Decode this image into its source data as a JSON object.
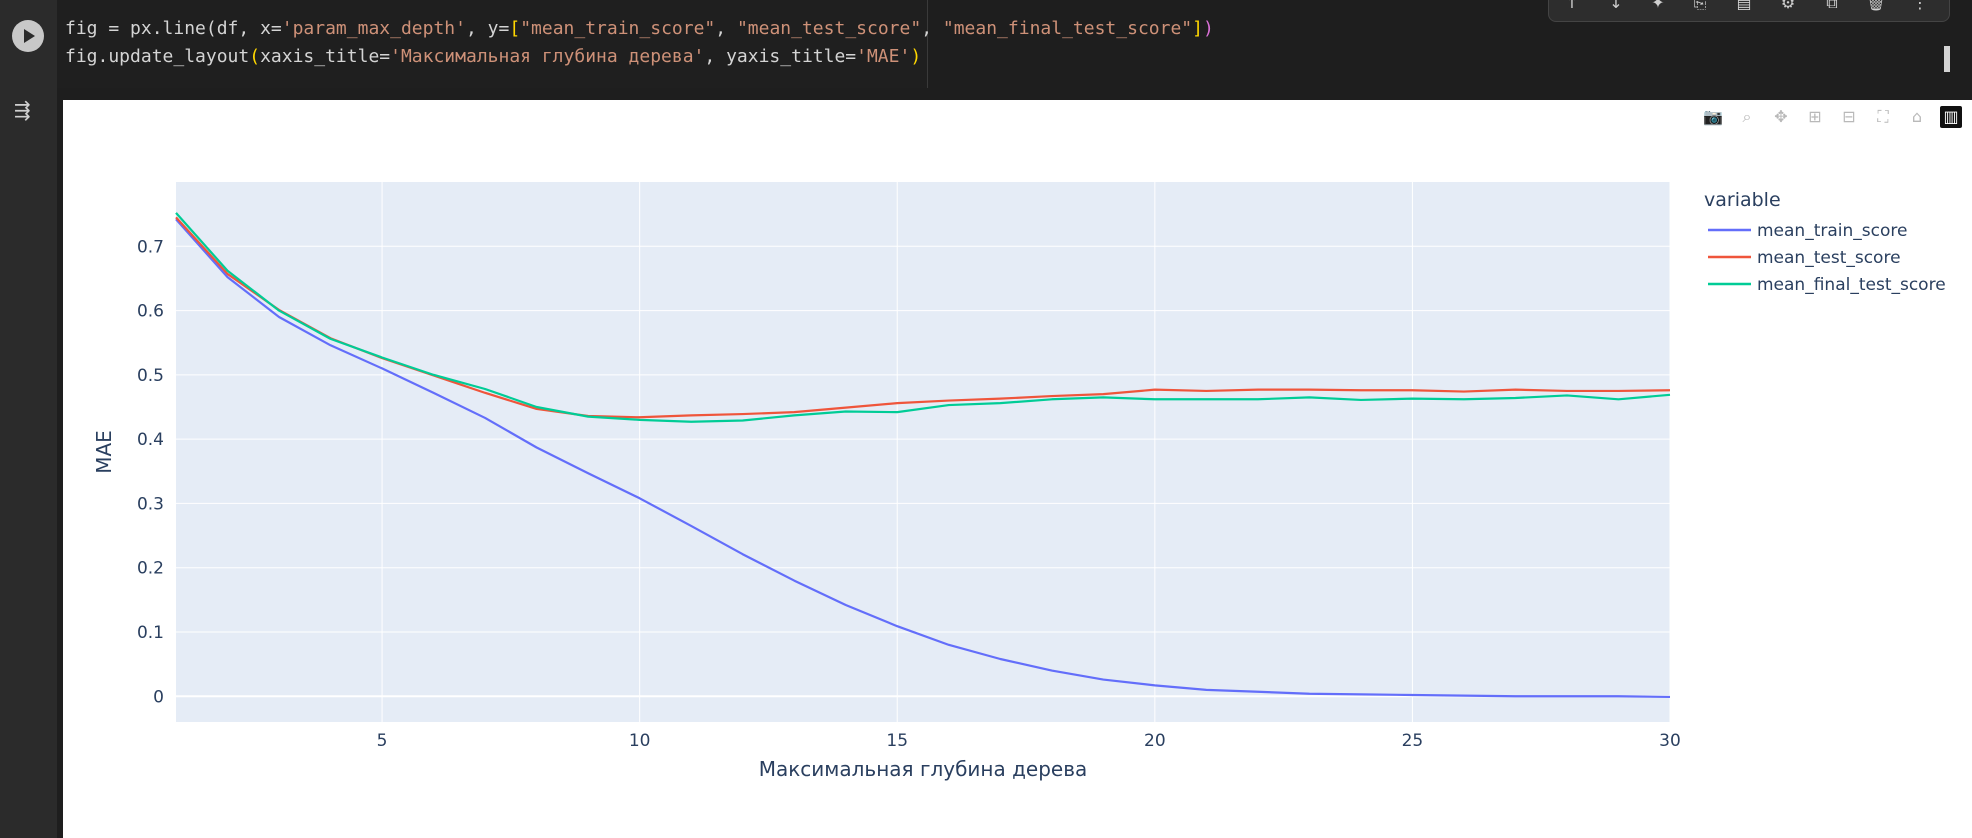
{
  "code": {
    "line1": {
      "p1": "fig = px.line(df, x=",
      "s1": "'param_max_depth'",
      "p2": ", y=",
      "b1": "[",
      "s2": "\"mean_train_score\"",
      "p3": ", ",
      "s3": "\"mean_test_score\"",
      "p4": ", ",
      "s4": "\"mean_final_test_score\"",
      "b2": "]",
      "p5": ")"
    },
    "line2": {
      "p1": "fig.update_layout",
      "b1": "(",
      "p2": "xaxis_title=",
      "s1": "'Максимальная глубина дерева'",
      "p3": ", yaxis_title=",
      "s2": "'MAE'",
      "b2": ")"
    }
  },
  "toolbar": {
    "icons": [
      "arrow-up-icon",
      "arrow-down-icon",
      "sparkle-icon",
      "link-icon",
      "comment-icon",
      "gear-icon",
      "mirror-icon",
      "trash-icon",
      "more-icon"
    ]
  },
  "output": {
    "toggle_icon": "output-collapse-icon"
  },
  "modebar": {
    "icons": [
      "camera-icon",
      "zoom-icon",
      "pan-icon",
      "zoom-in-icon",
      "zoom-out-icon",
      "autoscale-icon",
      "home-icon",
      "plotly-logo-icon"
    ]
  },
  "colors": {
    "plot_bg": "#e5ecf6",
    "train": "#636efa",
    "test": "#ef553b",
    "final": "#00cc96",
    "text": "#2a3f5f"
  },
  "chart_data": {
    "type": "line",
    "xlabel": "Максимальная глубина дерева",
    "ylabel": "MAE",
    "legend_title": "variable",
    "legend_position": "right",
    "grid": true,
    "xlim": [
      1,
      30
    ],
    "ylim": [
      -0.04,
      0.8
    ],
    "xticks": [
      5,
      10,
      15,
      20,
      25,
      30
    ],
    "yticks": [
      0,
      0.1,
      0.2,
      0.3,
      0.4,
      0.5,
      0.6,
      0.7
    ],
    "x": [
      1,
      2,
      3,
      4,
      5,
      6,
      7,
      8,
      9,
      10,
      11,
      12,
      13,
      14,
      15,
      16,
      17,
      18,
      19,
      20,
      21,
      22,
      23,
      24,
      25,
      26,
      27,
      28,
      29,
      30
    ],
    "series": [
      {
        "name": "mean_train_score",
        "values": [
          0.742,
          0.652,
          0.59,
          0.546,
          0.51,
          0.472,
          0.433,
          0.387,
          0.347,
          0.308,
          0.265,
          0.221,
          0.18,
          0.142,
          0.109,
          0.08,
          0.058,
          0.04,
          0.026,
          0.017,
          0.01,
          0.007,
          0.004,
          0.003,
          0.002,
          0.001,
          0.0,
          0.0,
          0.0,
          -0.001
        ]
      },
      {
        "name": "mean_test_score",
        "values": [
          0.745,
          0.657,
          0.601,
          0.557,
          0.526,
          0.499,
          0.472,
          0.447,
          0.436,
          0.434,
          0.437,
          0.439,
          0.442,
          0.449,
          0.456,
          0.46,
          0.463,
          0.467,
          0.47,
          0.477,
          0.475,
          0.477,
          0.477,
          0.476,
          0.476,
          0.474,
          0.477,
          0.475,
          0.475,
          0.476
        ]
      },
      {
        "name": "mean_final_test_score",
        "values": [
          0.752,
          0.662,
          0.6,
          0.556,
          0.527,
          0.5,
          0.478,
          0.45,
          0.435,
          0.43,
          0.427,
          0.429,
          0.437,
          0.443,
          0.442,
          0.453,
          0.456,
          0.462,
          0.465,
          0.462,
          0.462,
          0.462,
          0.465,
          0.461,
          0.463,
          0.462,
          0.464,
          0.468,
          0.462,
          0.469
        ]
      }
    ]
  }
}
